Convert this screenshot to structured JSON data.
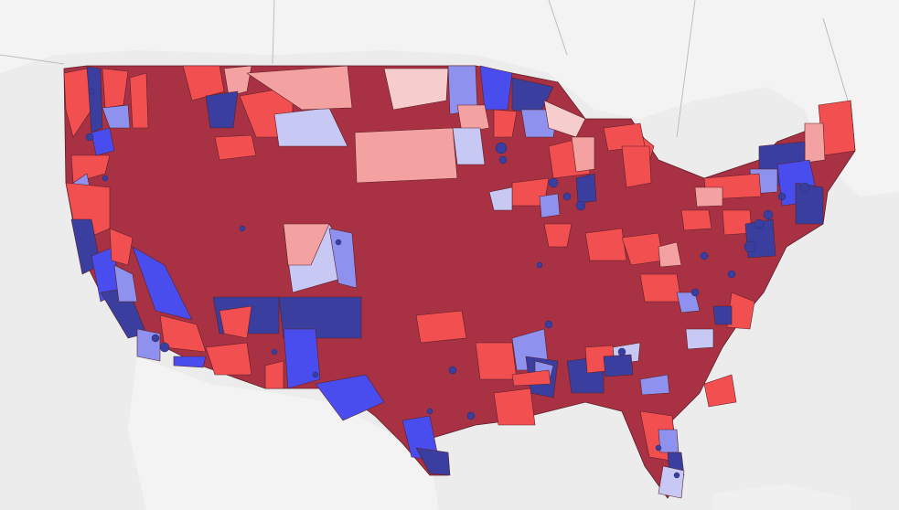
{
  "map": {
    "type": "choropleth",
    "region": "contiguous-united-states",
    "units": "districts",
    "basemap_colors": {
      "ocean": "#ececec",
      "land": "#f3f3f3",
      "border": "#bdbdbd"
    },
    "legend": [],
    "color_scale": {
      "strong_republican": "#a83244",
      "republican": "#f24f50",
      "lean_republican": "#f4a1a1",
      "slight_republican": "#f7cccc",
      "slight_democratic": "#c7c9f4",
      "lean_democratic": "#8e92ee",
      "democratic": "#4a4dee",
      "strong_democratic": "#3a3e9e"
    },
    "labels": []
  }
}
